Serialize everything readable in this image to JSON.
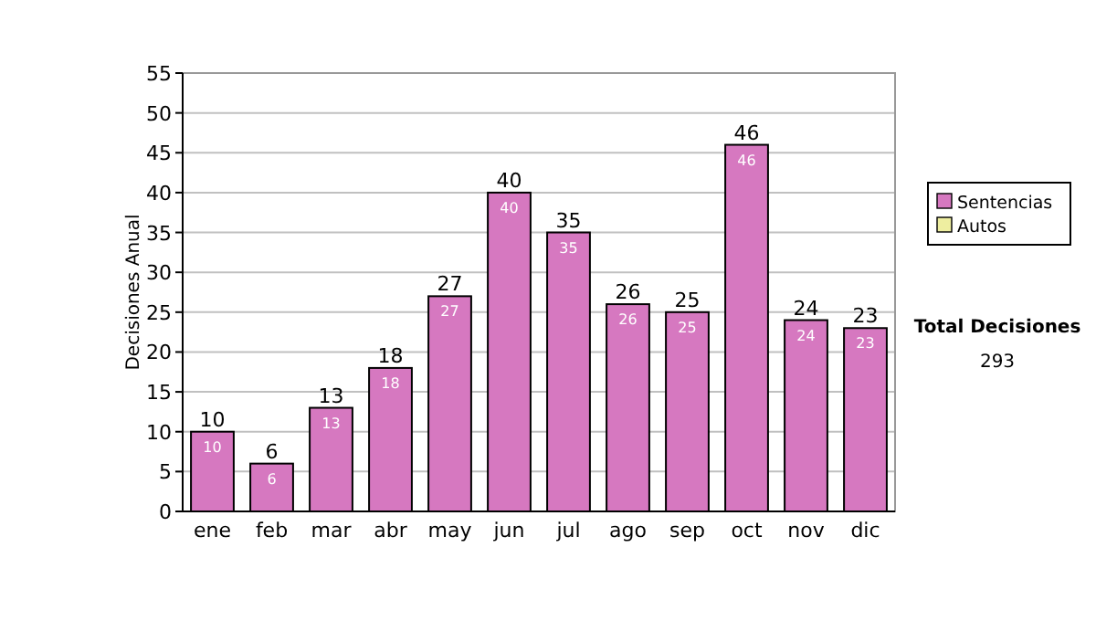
{
  "chart_data": {
    "type": "bar",
    "ylabel": "Decisiones Anual",
    "categories": [
      "ene",
      "feb",
      "mar",
      "abr",
      "may",
      "jun",
      "jul",
      "ago",
      "sep",
      "oct",
      "nov",
      "dic"
    ],
    "series": [
      {
        "name": "Sentencias",
        "color": "#d678c0",
        "values": [
          10,
          6,
          13,
          18,
          27,
          40,
          35,
          26,
          25,
          46,
          24,
          23
        ],
        "value_labels": [
          "10",
          "6",
          "13",
          "18",
          "27",
          "40",
          "35",
          "26",
          "25",
          "46",
          "24",
          "23"
        ]
      },
      {
        "name": "Autos",
        "color": "#eeeea0",
        "values": [
          0,
          0,
          0,
          0,
          0,
          0,
          0,
          0,
          0,
          0,
          0,
          0
        ]
      }
    ],
    "stacked": true,
    "totals": [
      "10",
      "6",
      "13",
      "18",
      "27",
      "40",
      "35",
      "26",
      "25",
      "46",
      "24",
      "23"
    ],
    "ylim": [
      0,
      55
    ],
    "yticks": [
      0,
      5,
      10,
      15,
      20,
      25,
      30,
      35,
      40,
      45,
      50,
      55
    ],
    "grid": "y",
    "legend": "right",
    "annotations": [
      "Total Decisiones",
      "293"
    ]
  }
}
